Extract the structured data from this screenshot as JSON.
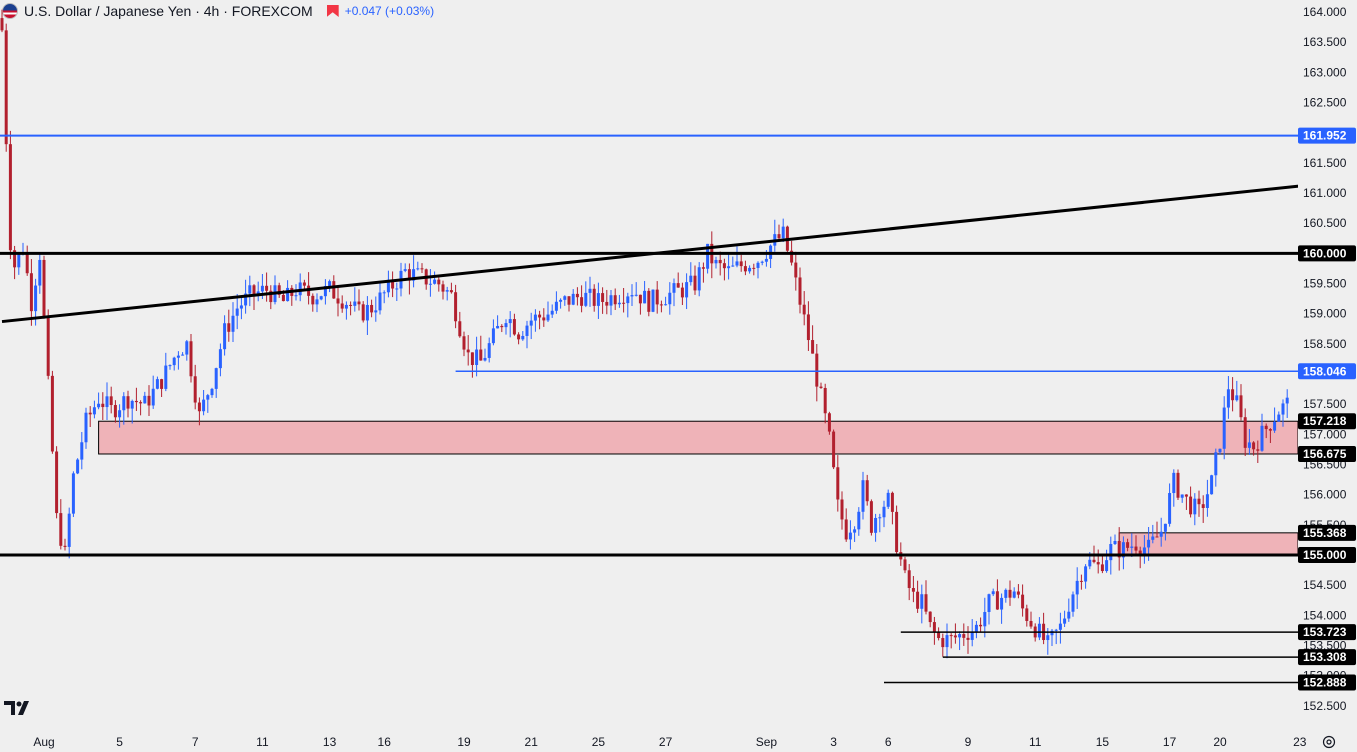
{
  "header": {
    "title": "U.S. Dollar / Japanese Yen · 4h · FOREXCOM",
    "change": "+0.047 (+0.03%)",
    "flag_icon": "usd-jpy-flag-icon",
    "marker_icon": "alert-marker-icon"
  },
  "colors": {
    "background": "#efefef",
    "up_candle": "#2962ff",
    "down_candle": "#b2202e",
    "zone_fill": "#efb3b8",
    "tag_black": "#000000",
    "tag_blue": "#2962ff",
    "blue_line": "#2962ff"
  },
  "chart_data": {
    "type": "candlestick",
    "title": "U.S. Dollar / Japanese Yen · 4h · FOREXCOM",
    "ylim": [
      152.1,
      164.2
    ],
    "y_ticks": [
      "164.000",
      "163.500",
      "163.000",
      "162.500",
      "162.000",
      "161.500",
      "161.000",
      "160.500",
      "160.000",
      "159.500",
      "159.000",
      "158.500",
      "158.000",
      "157.500",
      "157.000",
      "156.500",
      "156.000",
      "155.500",
      "155.000",
      "154.500",
      "154.000",
      "153.500",
      "153.000",
      "152.500"
    ],
    "x_ticks": [
      {
        "label": "Aug",
        "bar": 10
      },
      {
        "label": "5",
        "bar": 28
      },
      {
        "label": "7",
        "bar": 46
      },
      {
        "label": "11",
        "bar": 62
      },
      {
        "label": "13",
        "bar": 78
      },
      {
        "label": "16",
        "bar": 91
      },
      {
        "label": "19",
        "bar": 110
      },
      {
        "label": "21",
        "bar": 126
      },
      {
        "label": "25",
        "bar": 142
      },
      {
        "label": "27",
        "bar": 158
      },
      {
        "label": "Sep",
        "bar": 182
      },
      {
        "label": "3",
        "bar": 198
      },
      {
        "label": "6",
        "bar": 211
      },
      {
        "label": "9",
        "bar": 230
      },
      {
        "label": "11",
        "bar": 246
      },
      {
        "label": "15",
        "bar": 262
      },
      {
        "label": "17",
        "bar": 278
      },
      {
        "label": "20",
        "bar": 290
      },
      {
        "label": "23",
        "bar": 309
      }
    ],
    "ohlc_anchor_closes": [
      [
        0,
        163.7
      ],
      [
        1,
        161.9
      ],
      [
        2,
        160.2
      ],
      [
        3,
        159.8
      ],
      [
        5,
        160.1
      ],
      [
        7,
        159.2
      ],
      [
        9,
        160.0
      ],
      [
        11,
        157.8
      ],
      [
        13,
        155.6
      ],
      [
        15,
        155.0
      ],
      [
        17,
        156.3
      ],
      [
        20,
        157.2
      ],
      [
        23,
        157.6
      ],
      [
        26,
        157.4
      ],
      [
        30,
        157.6
      ],
      [
        34,
        157.5
      ],
      [
        38,
        157.9
      ],
      [
        42,
        158.4
      ],
      [
        44,
        158.5
      ],
      [
        47,
        157.3
      ],
      [
        50,
        157.9
      ],
      [
        53,
        158.7
      ],
      [
        56,
        159.1
      ],
      [
        59,
        159.3
      ],
      [
        63,
        159.4
      ],
      [
        67,
        159.2
      ],
      [
        70,
        159.4
      ],
      [
        74,
        159.3
      ],
      [
        78,
        159.4
      ],
      [
        82,
        159.2
      ],
      [
        85,
        159.0
      ],
      [
        88,
        159.1
      ],
      [
        92,
        159.4
      ],
      [
        96,
        159.7
      ],
      [
        100,
        159.6
      ],
      [
        104,
        159.5
      ],
      [
        107,
        159.3
      ],
      [
        111,
        158.3
      ],
      [
        114,
        158.2
      ],
      [
        117,
        158.6
      ],
      [
        120,
        159.0
      ],
      [
        123,
        158.7
      ],
      [
        126,
        158.9
      ],
      [
        130,
        159.0
      ],
      [
        134,
        159.2
      ],
      [
        138,
        159.3
      ],
      [
        142,
        159.2
      ],
      [
        146,
        159.3
      ],
      [
        150,
        159.4
      ],
      [
        154,
        159.2
      ],
      [
        158,
        159.3
      ],
      [
        162,
        159.4
      ],
      [
        165,
        159.5
      ],
      [
        168,
        160.0
      ],
      [
        170,
        159.8
      ],
      [
        173,
        159.7
      ],
      [
        176,
        159.8
      ],
      [
        180,
        159.9
      ],
      [
        184,
        160.2
      ],
      [
        186,
        160.3
      ],
      [
        188,
        159.8
      ],
      [
        190,
        159.2
      ],
      [
        192,
        158.6
      ],
      [
        195,
        157.6
      ],
      [
        197,
        156.9
      ],
      [
        199,
        155.8
      ],
      [
        201,
        155.4
      ],
      [
        203,
        155.6
      ],
      [
        205,
        156.1
      ],
      [
        207,
        155.5
      ],
      [
        209,
        155.8
      ],
      [
        211,
        155.9
      ],
      [
        213,
        155.2
      ],
      [
        215,
        154.6
      ],
      [
        217,
        154.3
      ],
      [
        219,
        154.2
      ],
      [
        221,
        153.8
      ],
      [
        223,
        153.6
      ],
      [
        226,
        153.6
      ],
      [
        229,
        153.7
      ],
      [
        232,
        153.8
      ],
      [
        235,
        154.2
      ],
      [
        238,
        154.3
      ],
      [
        241,
        154.4
      ],
      [
        243,
        154.1
      ],
      [
        246,
        153.8
      ],
      [
        249,
        153.5
      ],
      [
        252,
        153.8
      ],
      [
        255,
        154.4
      ],
      [
        258,
        154.9
      ],
      [
        261,
        154.8
      ],
      [
        264,
        155.1
      ],
      [
        267,
        155.1
      ],
      [
        270,
        155.2
      ],
      [
        273,
        155.1
      ],
      [
        276,
        155.4
      ],
      [
        279,
        156.2
      ],
      [
        282,
        155.9
      ],
      [
        285,
        155.7
      ],
      [
        288,
        156.2
      ],
      [
        290,
        156.9
      ],
      [
        292,
        157.8
      ],
      [
        294,
        157.5
      ],
      [
        296,
        156.9
      ],
      [
        298,
        156.8
      ],
      [
        300,
        157.0
      ],
      [
        302,
        157.2
      ],
      [
        304,
        157.4
      ],
      [
        306,
        157.5
      ]
    ],
    "levels": [
      {
        "label": "161.952",
        "value": 161.952,
        "color": "#2962ff",
        "style": "horizontal-line"
      },
      {
        "label": "160.000",
        "value": 160.0,
        "color": "#000000",
        "style": "horizontal-line"
      },
      {
        "label": "158.046",
        "value": 158.046,
        "color": "#2962ff",
        "style": "ray"
      },
      {
        "label": "157.218",
        "value": 157.218,
        "color": "#000000",
        "style": "zone-top"
      },
      {
        "label": "156.675",
        "value": 156.675,
        "color": "#000000",
        "style": "zone-bottom"
      },
      {
        "label": "155.368",
        "value": 155.368,
        "color": "#000000",
        "style": "zone-top"
      },
      {
        "label": "155.000",
        "value": 155.0,
        "color": "#000000",
        "style": "horizontal-line"
      },
      {
        "label": "153.723",
        "value": 153.723,
        "color": "#000000",
        "style": "ray"
      },
      {
        "label": "153.308",
        "value": 153.308,
        "color": "#000000",
        "style": "ray"
      },
      {
        "label": "152.888",
        "value": 152.888,
        "color": "#000000",
        "style": "ray"
      }
    ],
    "zones": [
      {
        "top": 157.218,
        "bottom": 156.675,
        "from_bar": 23,
        "fill": "#efb3b8"
      },
      {
        "top": 155.368,
        "bottom": 155.0,
        "from_bar": 266,
        "fill": "#efb3b8"
      }
    ],
    "trendline": {
      "from": {
        "bar": 0,
        "value": 158.87
      },
      "to": {
        "bar": 315,
        "value": 161.16
      },
      "color": "#000000"
    }
  }
}
